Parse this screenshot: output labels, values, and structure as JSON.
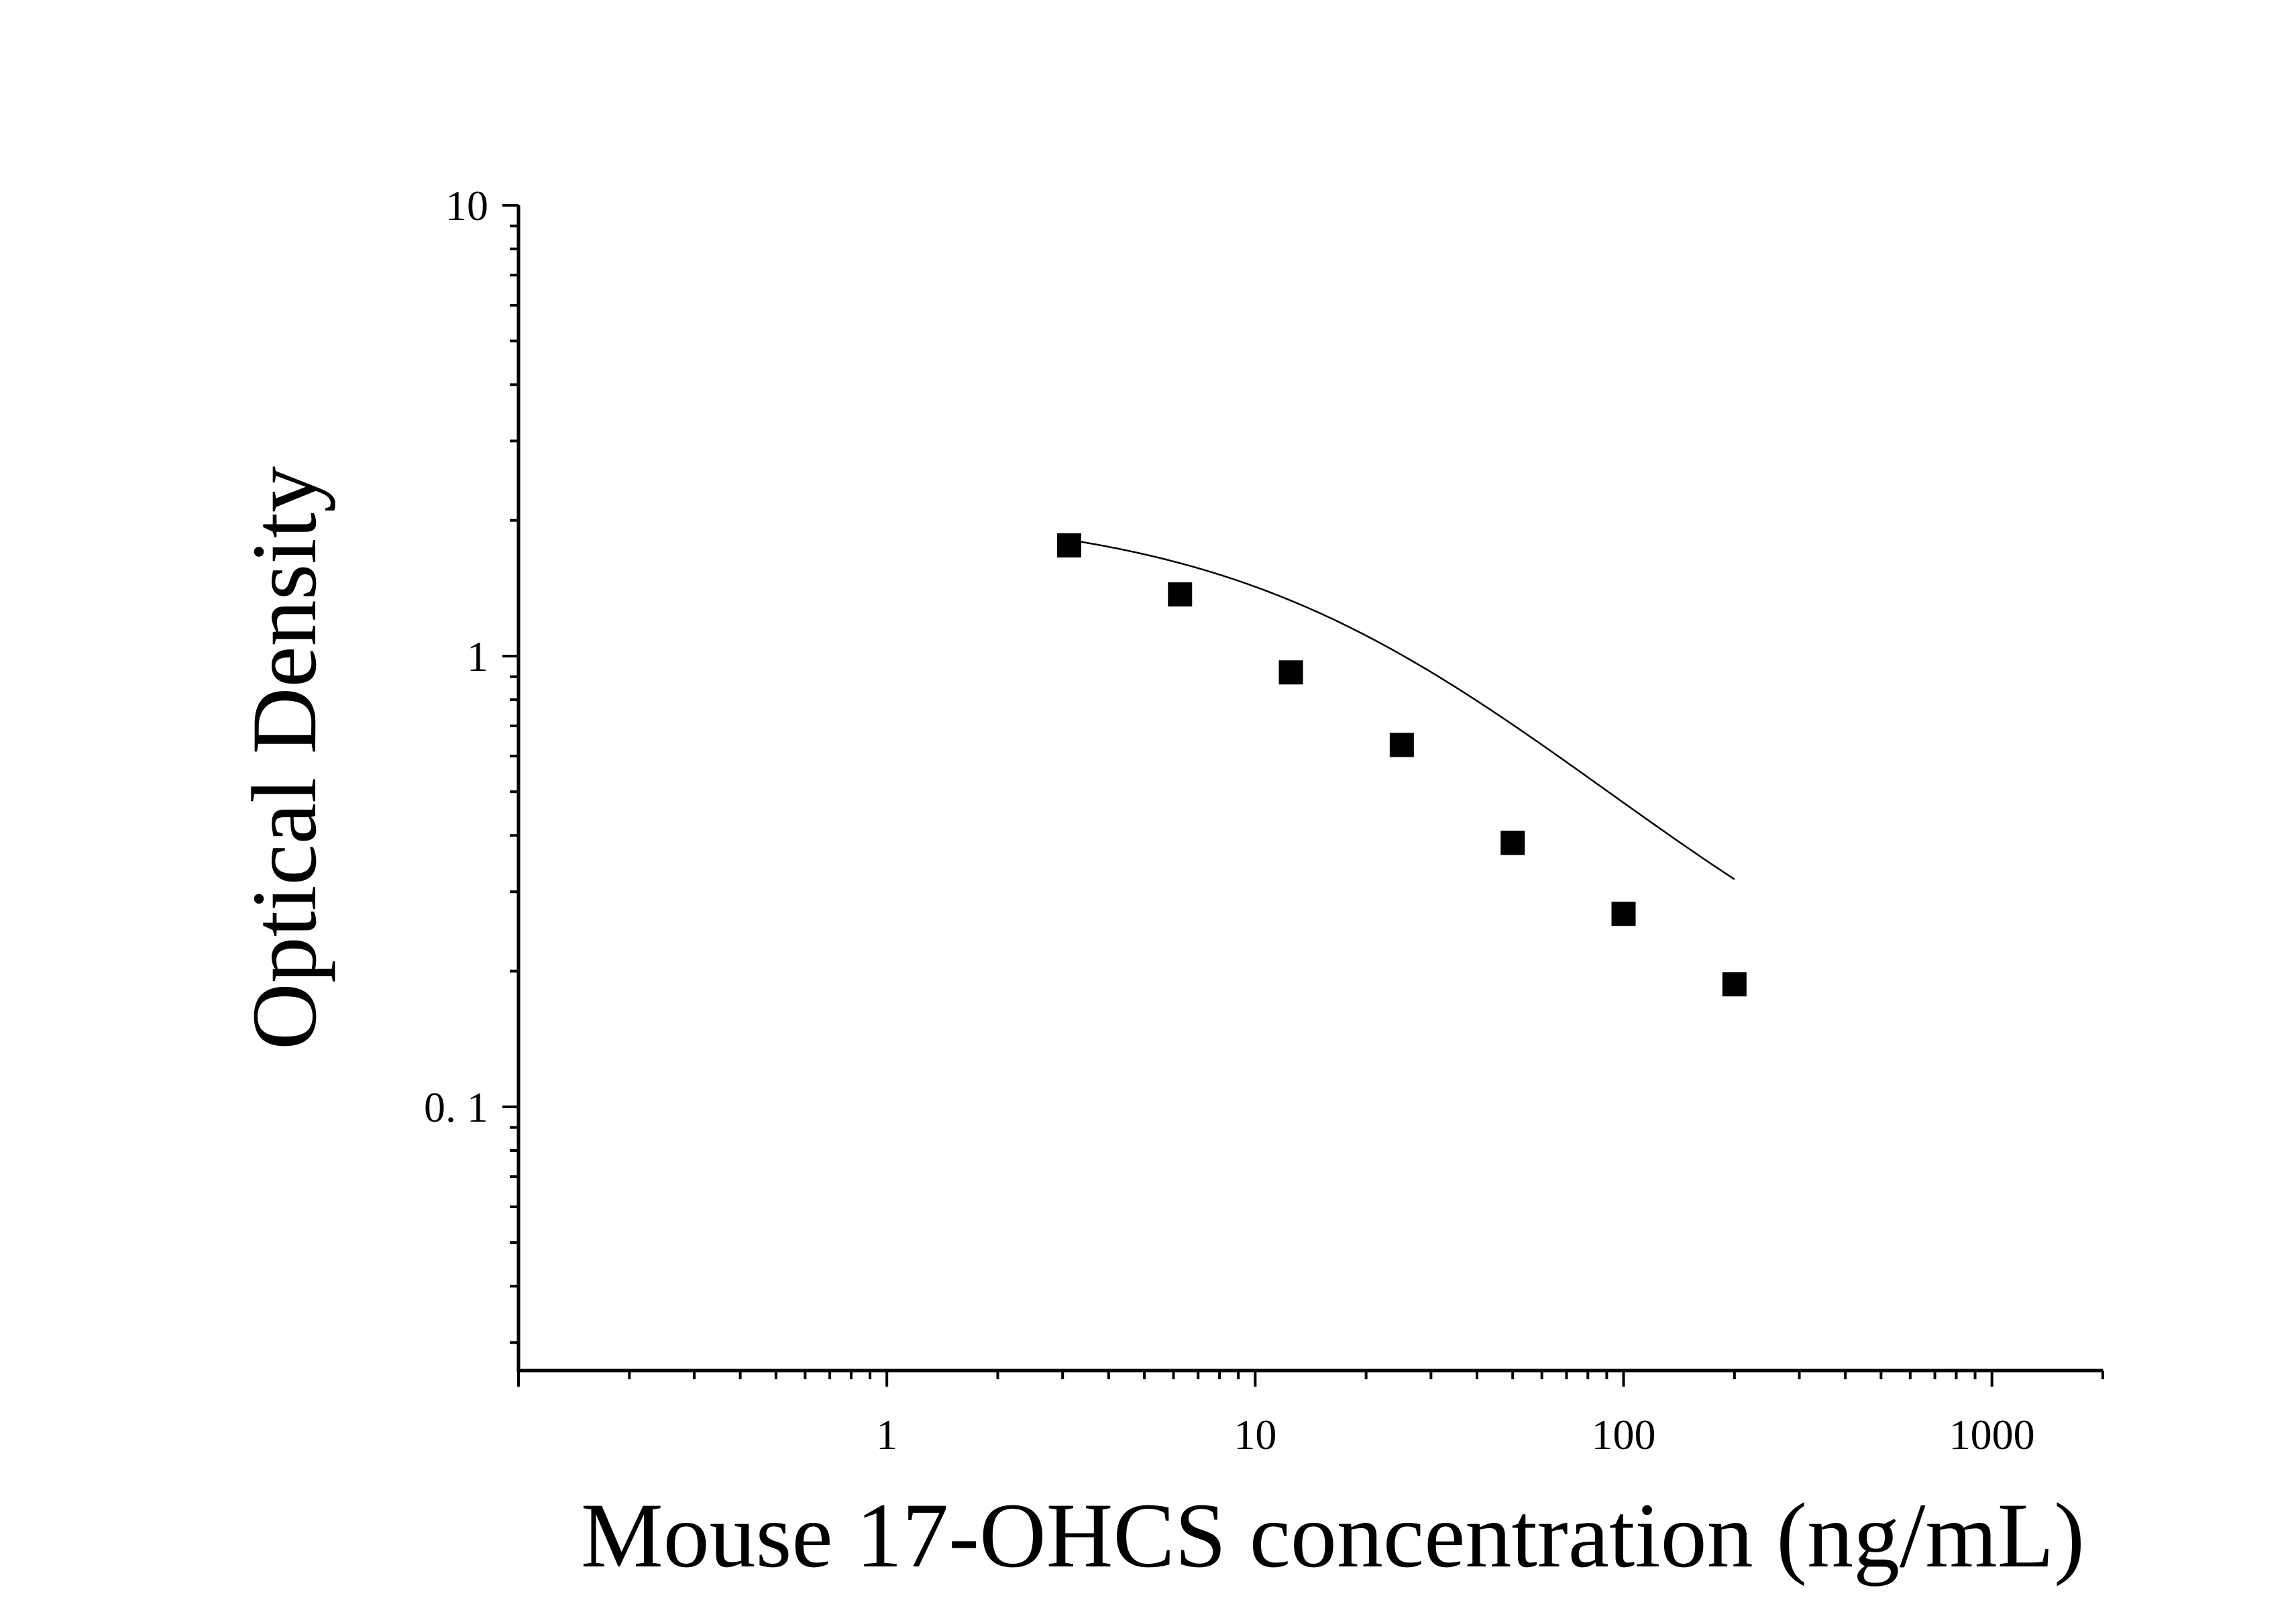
{
  "chart_data": {
    "type": "scatter",
    "title": "",
    "xlabel": "Mouse 17-OHCS concentration (ng/mL)",
    "ylabel": "Optical Density",
    "xscale": "log",
    "yscale": "log",
    "xlim": [
      0.1,
      2000
    ],
    "ylim": [
      0.026,
      10
    ],
    "x_ticks": [
      {
        "value": 1,
        "label": "1"
      },
      {
        "value": 10,
        "label": "10"
      },
      {
        "value": 100,
        "label": "100"
      },
      {
        "value": 1000,
        "label": "1000"
      }
    ],
    "y_ticks": [
      {
        "value": 10,
        "label": "10"
      },
      {
        "value": 1,
        "label": "1"
      },
      {
        "value": 0.1,
        "label": "0. 1"
      }
    ],
    "grid": false,
    "legend": "none",
    "series": [
      {
        "marker": "square",
        "color": "#000000",
        "x": [
          3.125,
          6.25,
          12.5,
          25,
          50,
          100,
          200
        ],
        "y": [
          1.76,
          1.37,
          0.92,
          0.635,
          0.385,
          0.268,
          0.187
        ]
      }
    ],
    "fit_curve": {
      "type": "4PL",
      "color": "#000000",
      "a": 2.1,
      "b": 0.95,
      "c": 20,
      "d": 0.12,
      "x_range": [
        3.125,
        200
      ]
    }
  }
}
